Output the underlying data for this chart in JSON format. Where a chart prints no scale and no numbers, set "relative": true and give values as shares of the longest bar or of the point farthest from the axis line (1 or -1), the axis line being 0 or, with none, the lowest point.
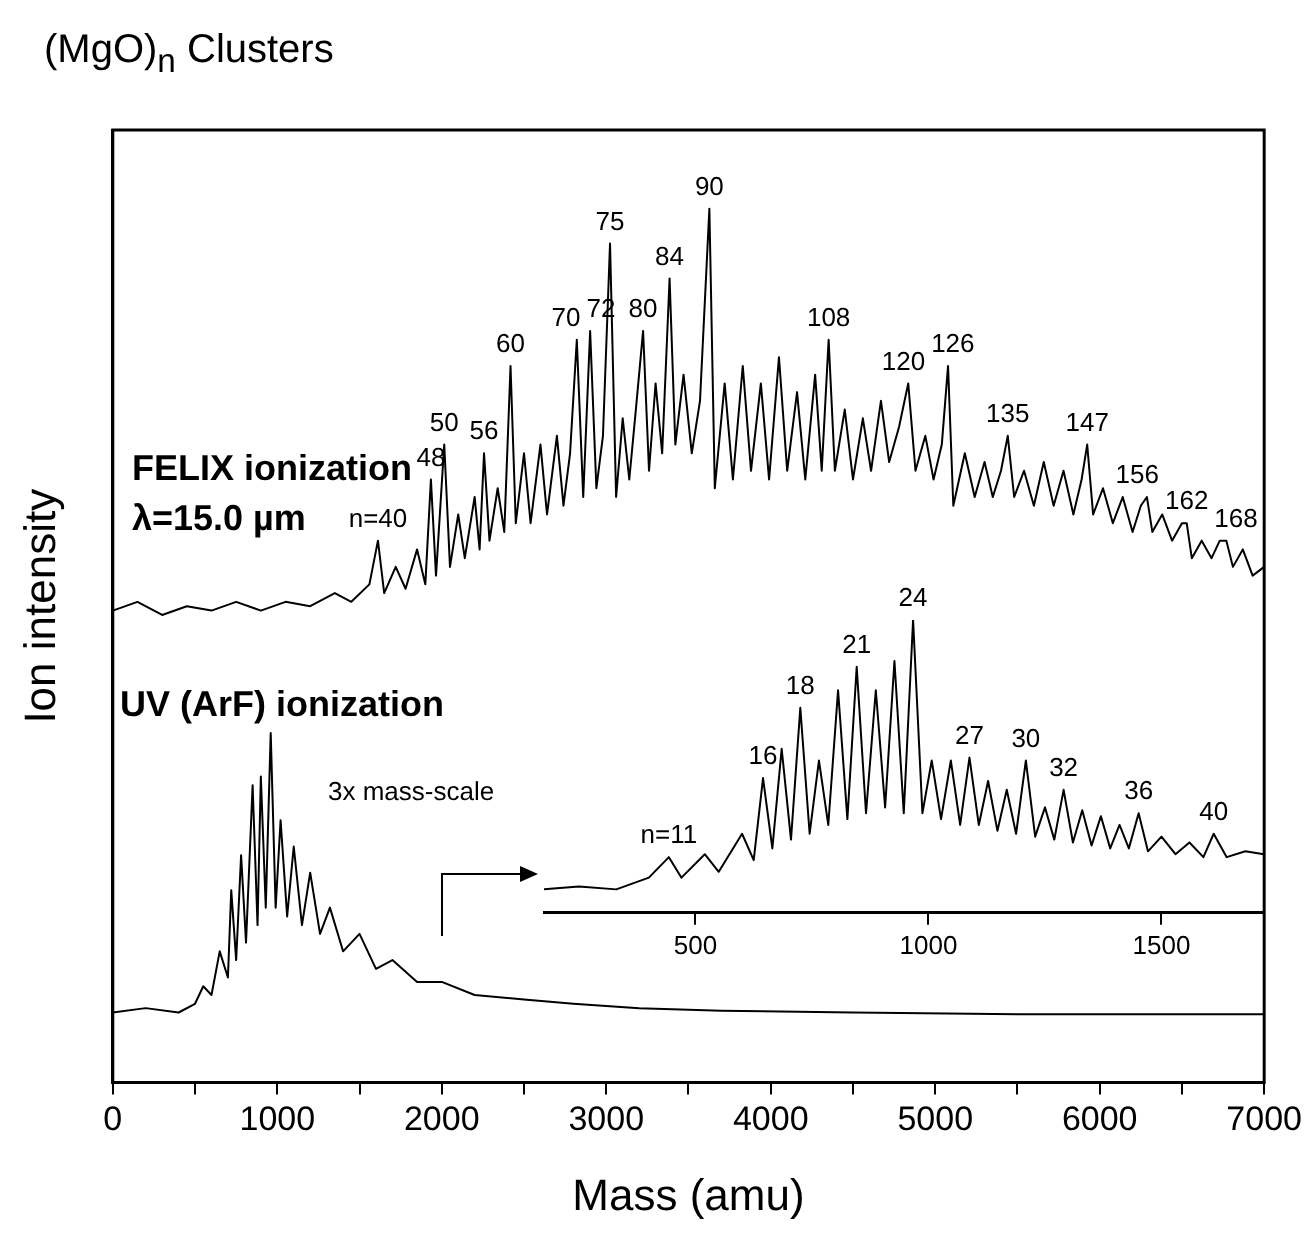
{
  "chart_data": [
    {
      "type": "line",
      "title": "(MgO)$_{n}$ Clusters",
      "xlabel": "Mass (amu)",
      "ylabel": "Ion intensity",
      "relative": true,
      "xlim": [
        0,
        7000
      ],
      "xticks": [
        0,
        {
          "value": 500,
          "label": null
        },
        1000,
        {
          "value": 1500,
          "label": null
        },
        2000,
        {
          "value": 2500,
          "label": null
        },
        3000,
        {
          "value": 3500,
          "label": null
        },
        4000,
        {
          "value": 4500,
          "label": null
        },
        5000,
        {
          "value": 5500,
          "label": null
        },
        6000,
        {
          "value": 6500,
          "label": null
        },
        7000
      ],
      "series": [
        {
          "name": "FELIX ionization",
          "color": "#000000",
          "x": [
            0,
            150,
            300,
            450,
            600,
            750,
            900,
            1050,
            1200,
            1350,
            1450,
            1560,
            1612,
            1650,
            1720,
            1780,
            1850,
            1900,
            1934,
            1965,
            2015,
            2050,
            2100,
            2140,
            2200,
            2230,
            2257,
            2290,
            2340,
            2380,
            2418,
            2450,
            2500,
            2540,
            2600,
            2640,
            2700,
            2740,
            2780,
            2821,
            2860,
            2902,
            2940,
            2980,
            3023,
            3060,
            3100,
            3140,
            3180,
            3224,
            3260,
            3300,
            3340,
            3385,
            3420,
            3470,
            3520,
            3570,
            3627,
            3660,
            3720,
            3770,
            3830,
            3880,
            3940,
            3990,
            4050,
            4100,
            4160,
            4210,
            4270,
            4310,
            4352,
            4390,
            4450,
            4500,
            4560,
            4610,
            4670,
            4720,
            4780,
            4836,
            4880,
            4940,
            4990,
            5040,
            5078,
            5110,
            5180,
            5240,
            5300,
            5350,
            5400,
            5441,
            5480,
            5540,
            5600,
            5660,
            5720,
            5780,
            5840,
            5890,
            5924,
            5960,
            6020,
            6080,
            6140,
            6200,
            6250,
            6287,
            6320,
            6380,
            6440,
            6500,
            6529,
            6560,
            6620,
            6680,
            6730,
            6770,
            6810,
            6870,
            6930,
            7000
          ],
          "values": [
            0.54,
            0.55,
            0.535,
            0.545,
            0.54,
            0.55,
            0.54,
            0.55,
            0.545,
            0.56,
            0.55,
            0.57,
            0.62,
            0.56,
            0.59,
            0.565,
            0.61,
            0.57,
            0.69,
            0.58,
            0.73,
            0.59,
            0.65,
            0.6,
            0.67,
            0.61,
            0.72,
            0.62,
            0.68,
            0.63,
            0.82,
            0.64,
            0.72,
            0.64,
            0.73,
            0.65,
            0.74,
            0.66,
            0.72,
            0.85,
            0.67,
            0.86,
            0.68,
            0.74,
            0.96,
            0.67,
            0.76,
            0.69,
            0.77,
            0.86,
            0.7,
            0.8,
            0.72,
            0.92,
            0.73,
            0.81,
            0.72,
            0.78,
            1.0,
            0.68,
            0.8,
            0.69,
            0.82,
            0.7,
            0.8,
            0.69,
            0.83,
            0.7,
            0.79,
            0.69,
            0.81,
            0.7,
            0.85,
            0.7,
            0.77,
            0.69,
            0.76,
            0.7,
            0.78,
            0.71,
            0.75,
            0.8,
            0.7,
            0.74,
            0.69,
            0.73,
            0.82,
            0.66,
            0.72,
            0.67,
            0.71,
            0.67,
            0.7,
            0.74,
            0.67,
            0.7,
            0.66,
            0.71,
            0.66,
            0.7,
            0.65,
            0.69,
            0.73,
            0.65,
            0.68,
            0.64,
            0.67,
            0.63,
            0.66,
            0.67,
            0.63,
            0.65,
            0.62,
            0.64,
            0.64,
            0.6,
            0.62,
            0.6,
            0.62,
            0.62,
            0.59,
            0.61,
            0.58,
            0.59
          ]
        },
        {
          "name": "UV (ArF) ionization",
          "color": "#000000",
          "x": [
            0,
            200,
            400,
            500,
            550,
            600,
            650,
            700,
            720,
            750,
            780,
            810,
            850,
            880,
            900,
            930,
            960,
            990,
            1020,
            1060,
            1100,
            1150,
            1200,
            1260,
            1320,
            1400,
            1500,
            1600,
            1700,
            1850,
            2000,
            2200,
            2500,
            2800,
            3200,
            3700,
            4500,
            5500,
            6500,
            7000
          ],
          "values": [
            0.08,
            0.085,
            0.08,
            0.09,
            0.11,
            0.1,
            0.15,
            0.12,
            0.22,
            0.14,
            0.26,
            0.16,
            0.34,
            0.18,
            0.35,
            0.2,
            0.4,
            0.2,
            0.3,
            0.19,
            0.27,
            0.18,
            0.24,
            0.17,
            0.2,
            0.15,
            0.17,
            0.13,
            0.14,
            0.115,
            0.115,
            0.1,
            0.095,
            0.09,
            0.085,
            0.082,
            0.08,
            0.078,
            0.078,
            0.078
          ]
        }
      ],
      "annotations": [
        {
          "text": "n=40",
          "x": 1612,
          "y": 0.62
        },
        {
          "text": "48",
          "x": 1934,
          "y": 0.69
        },
        {
          "text": "50",
          "x": 2015,
          "y": 0.73
        },
        {
          "text": "56",
          "x": 2257,
          "y": 0.72
        },
        {
          "text": "60",
          "x": 2418,
          "y": 0.82
        },
        {
          "text": "70",
          "x": 2821,
          "y": 0.85
        },
        {
          "text": "72",
          "x": 2902,
          "y": 0.86
        },
        {
          "text": "75",
          "x": 3023,
          "y": 0.96
        },
        {
          "text": "80",
          "x": 3224,
          "y": 0.86
        },
        {
          "text": "84",
          "x": 3385,
          "y": 0.92
        },
        {
          "text": "90",
          "x": 3627,
          "y": 1.0
        },
        {
          "text": "108",
          "x": 4352,
          "y": 0.85
        },
        {
          "text": "120",
          "x": 4836,
          "y": 0.8
        },
        {
          "text": "126",
          "x": 5078,
          "y": 0.82
        },
        {
          "text": "135",
          "x": 5441,
          "y": 0.74
        },
        {
          "text": "147",
          "x": 5924,
          "y": 0.73
        },
        {
          "text": "156",
          "x": 6287,
          "y": 0.67
        },
        {
          "text": "162",
          "x": 6529,
          "y": 0.64
        },
        {
          "text": "168",
          "x": 6770,
          "y": 0.62
        },
        "λ=15.0 µm",
        "3x mass-scale"
      ]
    },
    {
      "type": "line",
      "relative": true,
      "xlim": [
        175,
        1720
      ],
      "xticks": [
        500,
        1000,
        1500
      ],
      "series": [
        {
          "color": "#000000",
          "x": [
            175,
            250,
            330,
            400,
            443,
            470,
            520,
            550,
            600,
            625,
            645,
            665,
            685,
            705,
            725,
            745,
            765,
            785,
            806,
            826,
            846,
            866,
            887,
            907,
            927,
            947,
            967,
            987,
            1007,
            1027,
            1048,
            1068,
            1088,
            1108,
            1128,
            1148,
            1168,
            1188,
            1209,
            1229,
            1250,
            1270,
            1290,
            1310,
            1330,
            1350,
            1370,
            1390,
            1410,
            1430,
            1451,
            1471,
            1500,
            1530,
            1560,
            1590,
            1612,
            1640,
            1680,
            1720
          ],
          "values": [
            0.08,
            0.09,
            0.08,
            0.12,
            0.19,
            0.12,
            0.2,
            0.14,
            0.27,
            0.18,
            0.46,
            0.22,
            0.56,
            0.25,
            0.7,
            0.27,
            0.52,
            0.3,
            0.76,
            0.32,
            0.84,
            0.34,
            0.76,
            0.36,
            0.86,
            0.34,
            1.0,
            0.34,
            0.52,
            0.32,
            0.52,
            0.3,
            0.53,
            0.3,
            0.45,
            0.28,
            0.42,
            0.27,
            0.52,
            0.26,
            0.36,
            0.25,
            0.42,
            0.24,
            0.35,
            0.23,
            0.33,
            0.22,
            0.3,
            0.22,
            0.34,
            0.21,
            0.26,
            0.2,
            0.24,
            0.19,
            0.27,
            0.19,
            0.21,
            0.2
          ]
        }
      ],
      "annotations": [
        {
          "text": "n=11",
          "x": 443,
          "y": 0.19
        },
        {
          "text": "16",
          "x": 645,
          "y": 0.46
        },
        {
          "text": "18",
          "x": 725,
          "y": 0.7
        },
        {
          "text": "21",
          "x": 846,
          "y": 0.84
        },
        {
          "text": "24",
          "x": 967,
          "y": 1.0
        },
        {
          "text": "27",
          "x": 1088,
          "y": 0.53
        },
        {
          "text": "30",
          "x": 1209,
          "y": 0.52
        },
        {
          "text": "32",
          "x": 1290,
          "y": 0.42
        },
        {
          "text": "36",
          "x": 1451,
          "y": 0.34
        },
        {
          "text": "40",
          "x": 1612,
          "y": 0.27
        }
      ]
    }
  ]
}
